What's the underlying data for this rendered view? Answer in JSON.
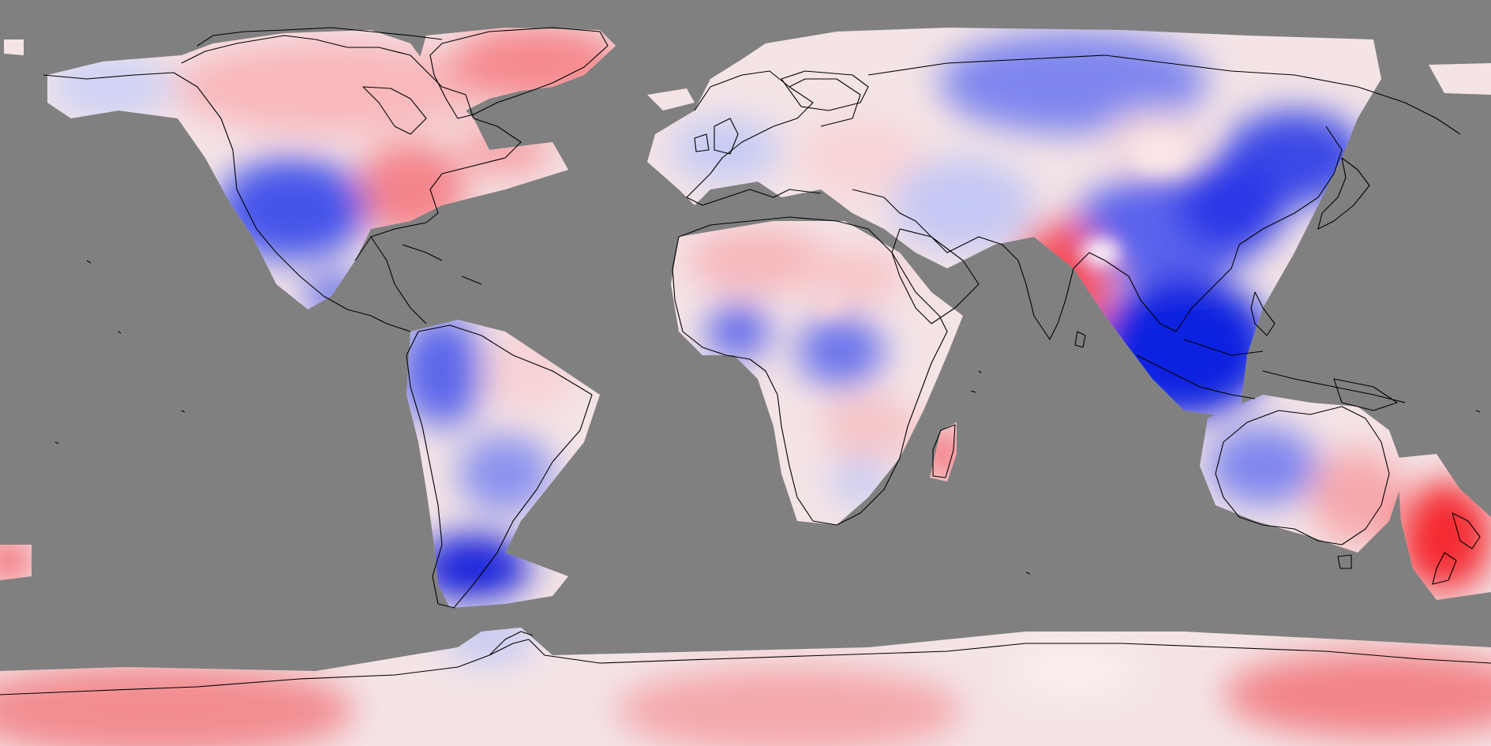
{
  "map": {
    "projection": "equirectangular",
    "extent": {
      "lon": [
        -180,
        180
      ],
      "lat": [
        -90,
        90
      ]
    },
    "colors": {
      "ocean_no_data": "#808080",
      "land_outline": "#000000",
      "anomaly_warm": "#ff2a2a",
      "anomaly_neutral": "#ffffff",
      "anomaly_cold": "#0a14e6"
    },
    "legend": null,
    "title": ""
  }
}
